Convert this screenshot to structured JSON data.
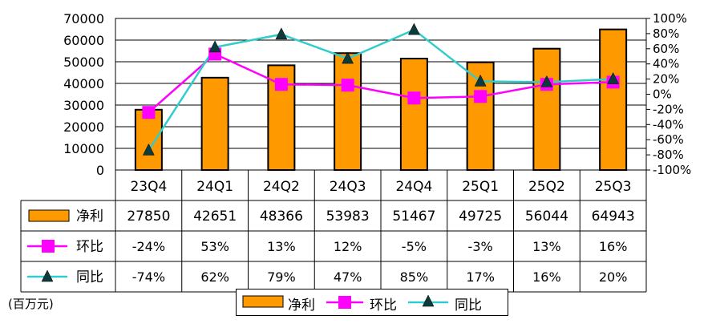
{
  "unit_label": "(百万元)",
  "legend": {
    "net_profit": "净利",
    "qoq": "环比",
    "yoy": "同比"
  },
  "colors": {
    "bar": "#ff9900",
    "qoq": "#ff00ff",
    "yoy": "#33cccc",
    "grid": "#000000"
  },
  "chart_data": {
    "type": "bar",
    "categories": [
      "23Q4",
      "24Q1",
      "24Q2",
      "24Q3",
      "24Q4",
      "25Q1",
      "25Q2",
      "25Q3"
    ],
    "series": [
      {
        "name": "净利",
        "type": "bar",
        "axis": "left",
        "values": [
          27850,
          42651,
          48366,
          53983,
          51467,
          49725,
          56044,
          64943
        ]
      },
      {
        "name": "环比",
        "type": "line",
        "axis": "right",
        "marker": "square",
        "values": [
          -24,
          53,
          13,
          12,
          -5,
          -3,
          13,
          16
        ],
        "labels": [
          "-24%",
          "53%",
          "13%",
          "12%",
          "-5%",
          "-3%",
          "13%",
          "16%"
        ]
      },
      {
        "name": "同比",
        "type": "line",
        "axis": "right",
        "marker": "triangle",
        "values": [
          -74,
          62,
          79,
          47,
          85,
          17,
          16,
          20
        ],
        "labels": [
          "-74%",
          "62%",
          "79%",
          "47%",
          "85%",
          "17%",
          "16%",
          "20%"
        ]
      }
    ],
    "ylim_left": [
      0,
      70000
    ],
    "yticks_left": [
      "70000",
      "60000",
      "50000",
      "40000",
      "30000",
      "20000",
      "10000",
      "0"
    ],
    "ylim_right": [
      -100,
      100
    ],
    "yticks_right": [
      "100%",
      "80%",
      "60%",
      "40%",
      "20%",
      "0%",
      "-20%",
      "-40%",
      "-60%",
      "-80%",
      "-100%"
    ],
    "grid": true,
    "legend_position": "bottom",
    "data_table": true
  }
}
